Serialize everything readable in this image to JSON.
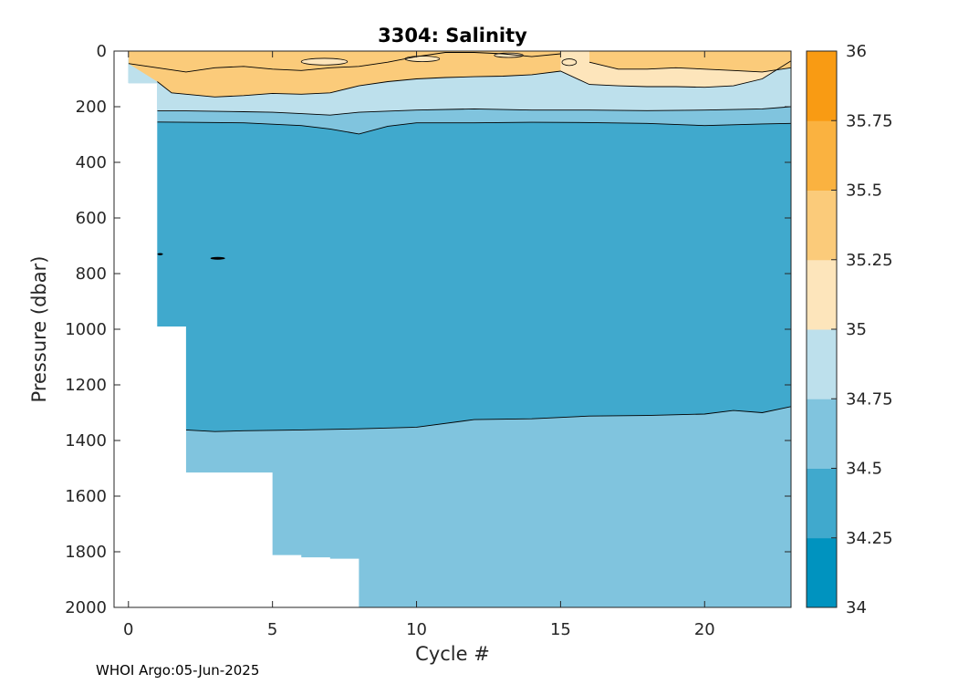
{
  "chart_data": {
    "type": "heatmap",
    "title": "3304:  Salinity",
    "xlabel": "Cycle #",
    "ylabel": "Pressure (dbar)",
    "xlim": [
      -0.5,
      23
    ],
    "ylim": [
      0,
      2000
    ],
    "y_reversed": true,
    "x_ticks": [
      0,
      5,
      10,
      15,
      20
    ],
    "y_ticks": [
      0,
      200,
      400,
      600,
      800,
      1000,
      1200,
      1400,
      1600,
      1800,
      2000
    ],
    "colorbar": {
      "range": [
        34,
        36
      ],
      "ticks": [
        "34",
        "34.25",
        "34.5",
        "34.75",
        "35",
        "35.25",
        "35.5",
        "35.75",
        "36"
      ],
      "colors": [
        "#0093bf",
        "#40a9cd",
        "#80c4de",
        "#bde0ec",
        "#fde5bb",
        "#fbcb7a",
        "#fab240",
        "#f99b13"
      ]
    },
    "profile_max_pressure": [
      {
        "x": 0,
        "p": 115
      },
      {
        "x": 1,
        "p": 990
      },
      {
        "x": 2,
        "p": 1515
      },
      {
        "x": 5,
        "p": 1812
      },
      {
        "x": 6,
        "p": 1820
      },
      {
        "x": 7,
        "p": 1825
      },
      {
        "x": 8,
        "p": 2000
      },
      {
        "x": 23,
        "p": 2000
      }
    ],
    "contours": {
      "c34_5": {
        "x": [
          2,
          3,
          4,
          6,
          8,
          10,
          12,
          14,
          16,
          18,
          20,
          21,
          22,
          23
        ],
        "p": [
          1362,
          1368,
          1365,
          1362,
          1358,
          1352,
          1325,
          1322,
          1312,
          1310,
          1305,
          1292,
          1300,
          1278
        ]
      },
      "c34_75": {
        "x": [
          1,
          2,
          4,
          6,
          7,
          8,
          9,
          10,
          12,
          14,
          16,
          18,
          20,
          22,
          23
        ],
        "p": [
          255,
          256,
          258,
          268,
          280,
          298,
          270,
          258,
          258,
          256,
          257,
          260,
          268,
          262,
          260
        ]
      },
      "c35": {
        "x": [
          1,
          2,
          4,
          5,
          6,
          7,
          8,
          10,
          12,
          14,
          16,
          18,
          20,
          22,
          23
        ],
        "p": [
          215,
          215,
          218,
          220,
          225,
          230,
          220,
          212,
          208,
          212,
          212,
          214,
          212,
          208,
          200
        ]
      },
      "c35_25": {
        "x": [
          1,
          1.5,
          2,
          3,
          4,
          5,
          6,
          7,
          8,
          9,
          10,
          11,
          12,
          13,
          14,
          15,
          16,
          17,
          18,
          19,
          20,
          21,
          22,
          23
        ],
        "p": [
          110,
          150,
          155,
          165,
          160,
          152,
          155,
          150,
          125,
          110,
          100,
          95,
          92,
          90,
          85,
          72,
          120,
          125,
          128,
          128,
          130,
          125,
          100,
          35
        ]
      },
      "c35_5_upper": {
        "x": [
          0,
          1,
          2,
          3,
          4,
          5,
          6,
          7,
          8,
          9,
          10,
          11,
          12,
          13,
          14,
          15
        ],
        "p": [
          45,
          60,
          75,
          60,
          55,
          65,
          70,
          60,
          55,
          40,
          20,
          5,
          5,
          10,
          20,
          10
        ]
      },
      "c35_5_right": {
        "x": [
          16,
          17,
          18,
          19,
          20,
          21,
          22,
          23
        ],
        "p": [
          40,
          65,
          65,
          60,
          65,
          70,
          75,
          60
        ]
      }
    },
    "footer": "WHOI Argo:05-Jun-2025"
  }
}
